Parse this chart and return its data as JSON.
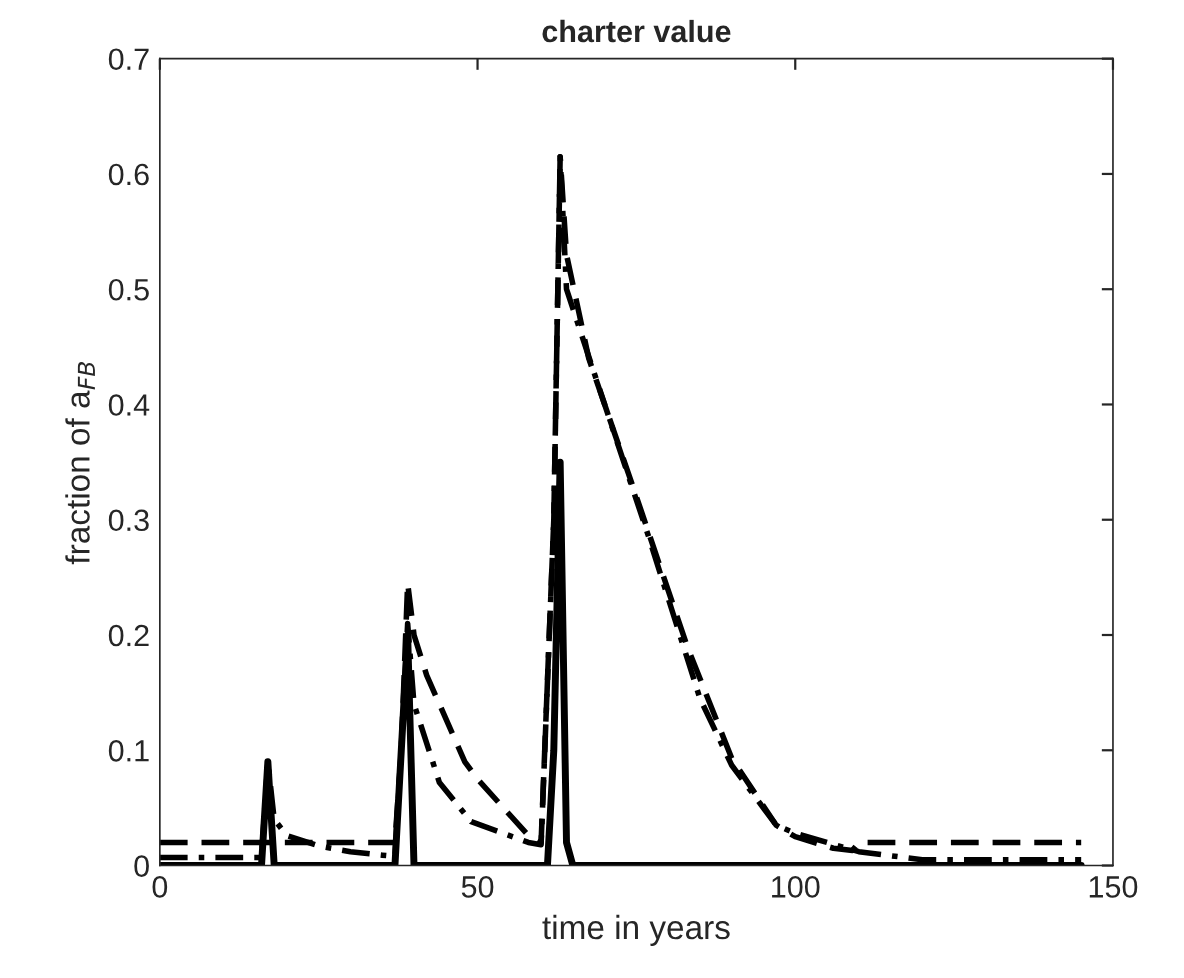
{
  "chart_data": {
    "type": "line",
    "title": "charter value",
    "xlabel": "time in years",
    "ylabel": "fraction of a$_{FB}$",
    "xlim": [
      0,
      150
    ],
    "ylim": [
      0,
      0.7
    ],
    "xticks": [
      0,
      50,
      100,
      150
    ],
    "yticks": [
      0,
      0.1,
      0.2,
      0.3,
      0.4,
      0.5,
      0.6,
      0.7
    ],
    "grid": false,
    "legend": false,
    "series": [
      {
        "color": "#000000",
        "line_style": "solid",
        "x": [
          0,
          16,
          17,
          18,
          37,
          38,
          39,
          40,
          60,
          61,
          62,
          63,
          64,
          65,
          145
        ],
        "values": [
          0,
          0,
          0.09,
          0,
          0,
          0.1,
          0.2,
          0,
          0,
          0,
          0.1,
          0.35,
          0.02,
          0,
          0
        ]
      },
      {
        "color": "#000000",
        "line_style": "dashed",
        "x": [
          0,
          37,
          38,
          39,
          40,
          42,
          48,
          50,
          58,
          60,
          62,
          63,
          64,
          67.5,
          75,
          83,
          90,
          97,
          100,
          106,
          109,
          110,
          145
        ],
        "values": [
          0.02,
          0.02,
          0.1,
          0.245,
          0.2,
          0.165,
          0.09,
          0.075,
          0.026,
          0.02,
          0.3,
          0.615,
          0.53,
          0.44,
          0.32,
          0.19,
          0.093,
          0.035,
          0.025,
          0.015,
          0.013,
          0.02,
          0.02
        ]
      },
      {
        "color": "#000000",
        "line_style": "dashdot",
        "x": [
          0,
          16,
          17,
          18,
          20,
          25,
          30,
          35,
          37,
          38,
          39,
          40,
          44,
          49,
          58,
          60,
          62,
          63,
          64,
          70,
          77,
          85,
          90,
          97,
          100,
          110,
          120,
          145
        ],
        "values": [
          0.007,
          0.007,
          0.09,
          0.04,
          0.026,
          0.017,
          0.012,
          0.009,
          0.008,
          0.1,
          0.21,
          0.14,
          0.072,
          0.038,
          0.02,
          0.018,
          0.3,
          0.615,
          0.5,
          0.4,
          0.284,
          0.145,
          0.087,
          0.035,
          0.028,
          0.012,
          0.005,
          0.005
        ]
      }
    ]
  }
}
